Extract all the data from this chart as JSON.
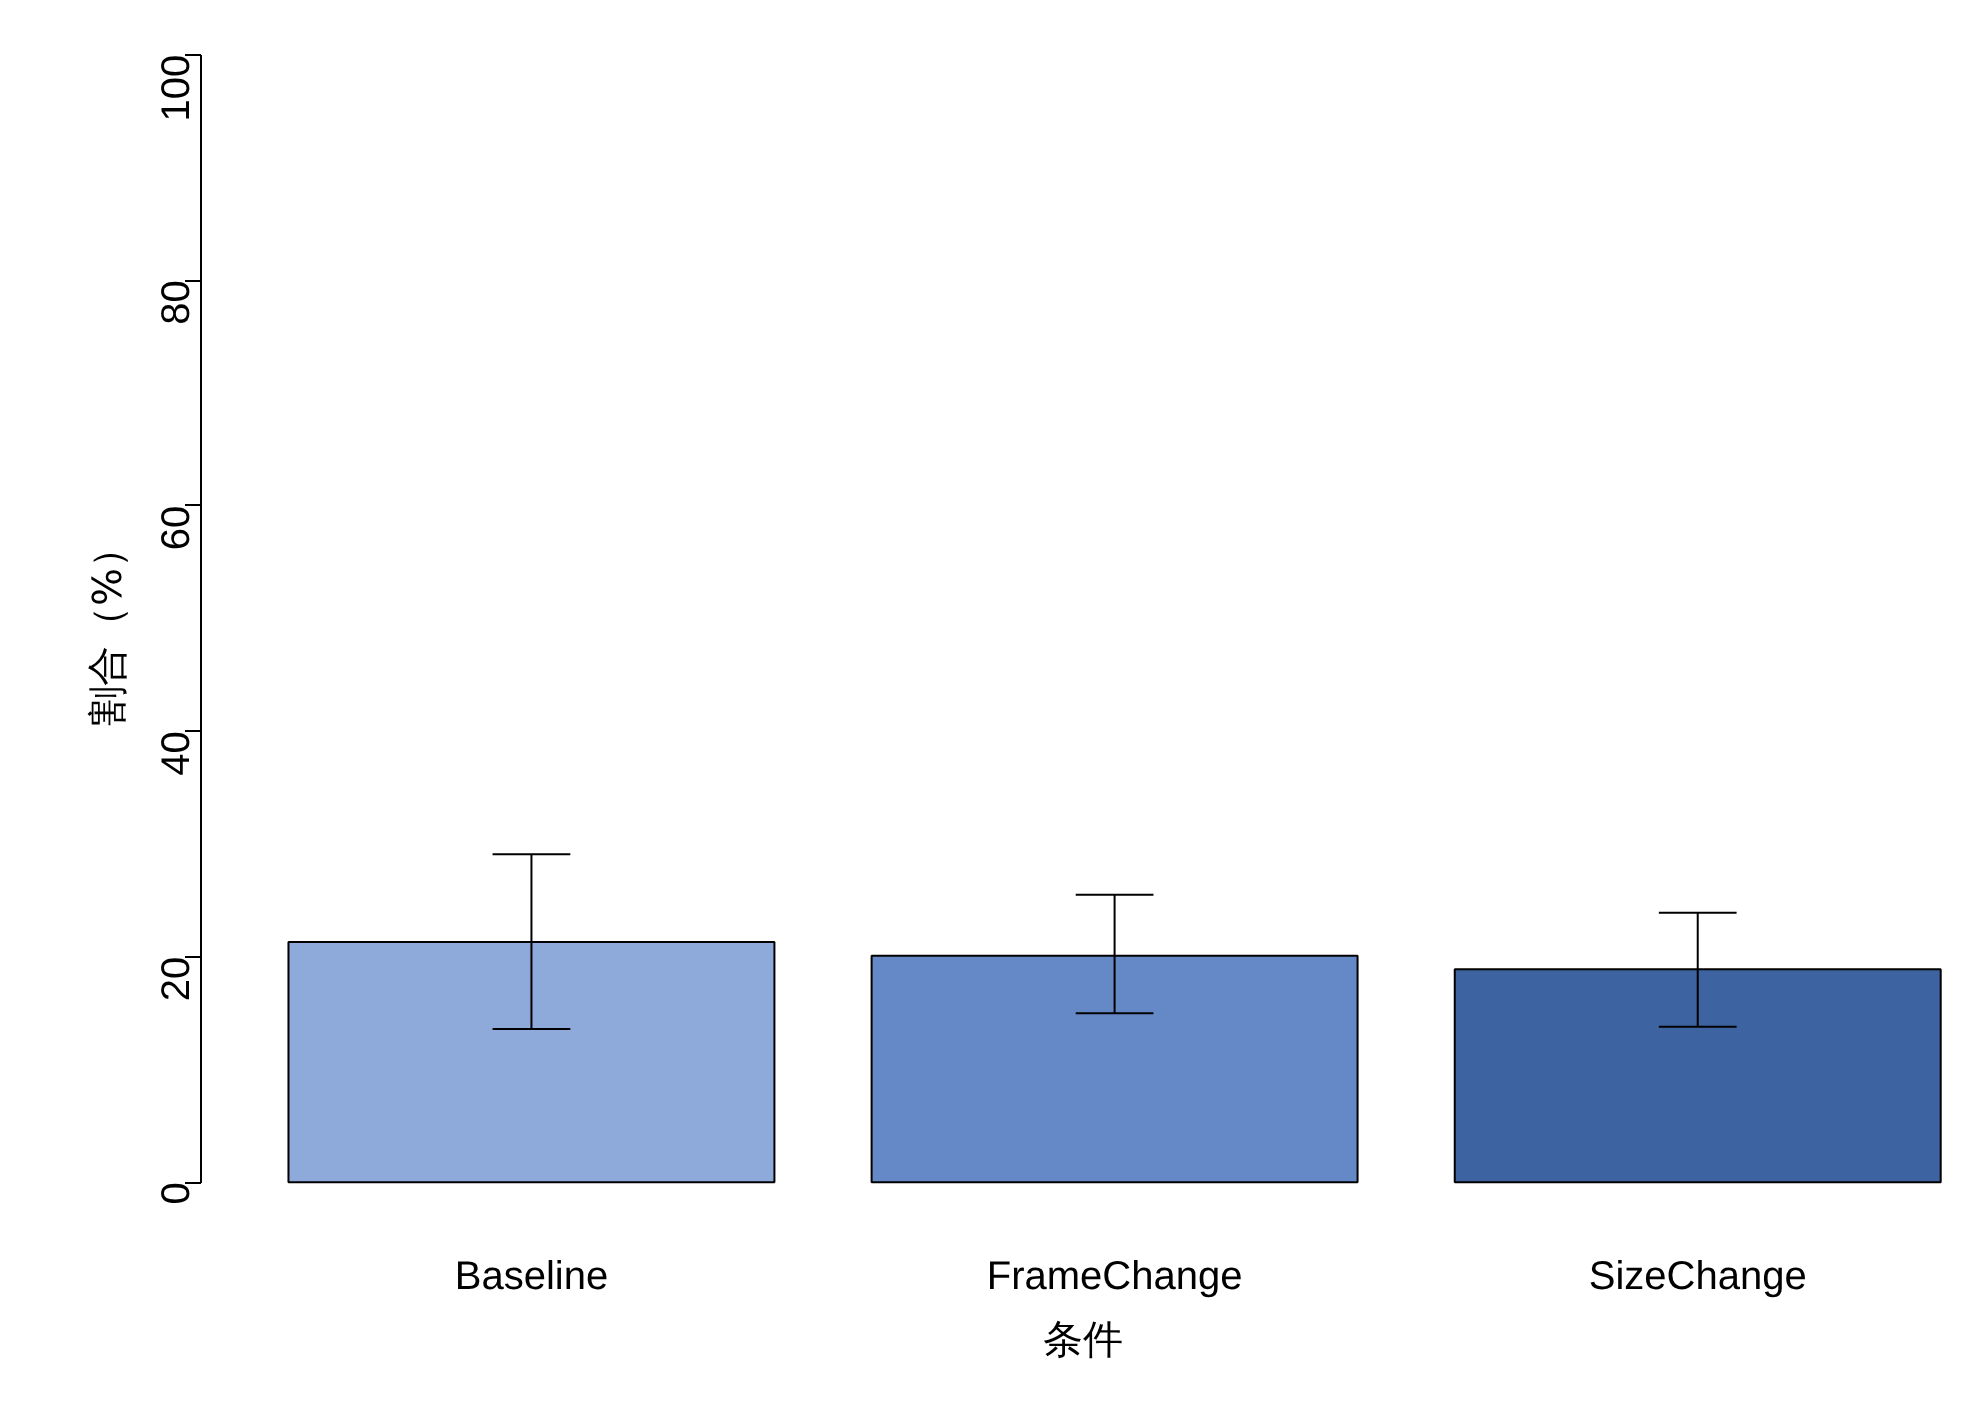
{
  "chart_data": {
    "type": "bar",
    "xlabel": "条件",
    "ylabel": "割合（%）",
    "categories": [
      "Baseline",
      "FrameChange",
      "SizeChange"
    ],
    "values": [
      21.3,
      20.1,
      18.9
    ],
    "colors": [
      "#8eaadb",
      "#6589c6",
      "#3d64a0"
    ],
    "errors": [
      [
        13.6,
        29.1
      ],
      [
        15.0,
        25.5
      ],
      [
        13.8,
        23.9
      ]
    ],
    "ylim": [
      0,
      100
    ],
    "yticks": [
      0,
      20,
      40,
      60,
      80,
      100
    ],
    "grid": false
  }
}
